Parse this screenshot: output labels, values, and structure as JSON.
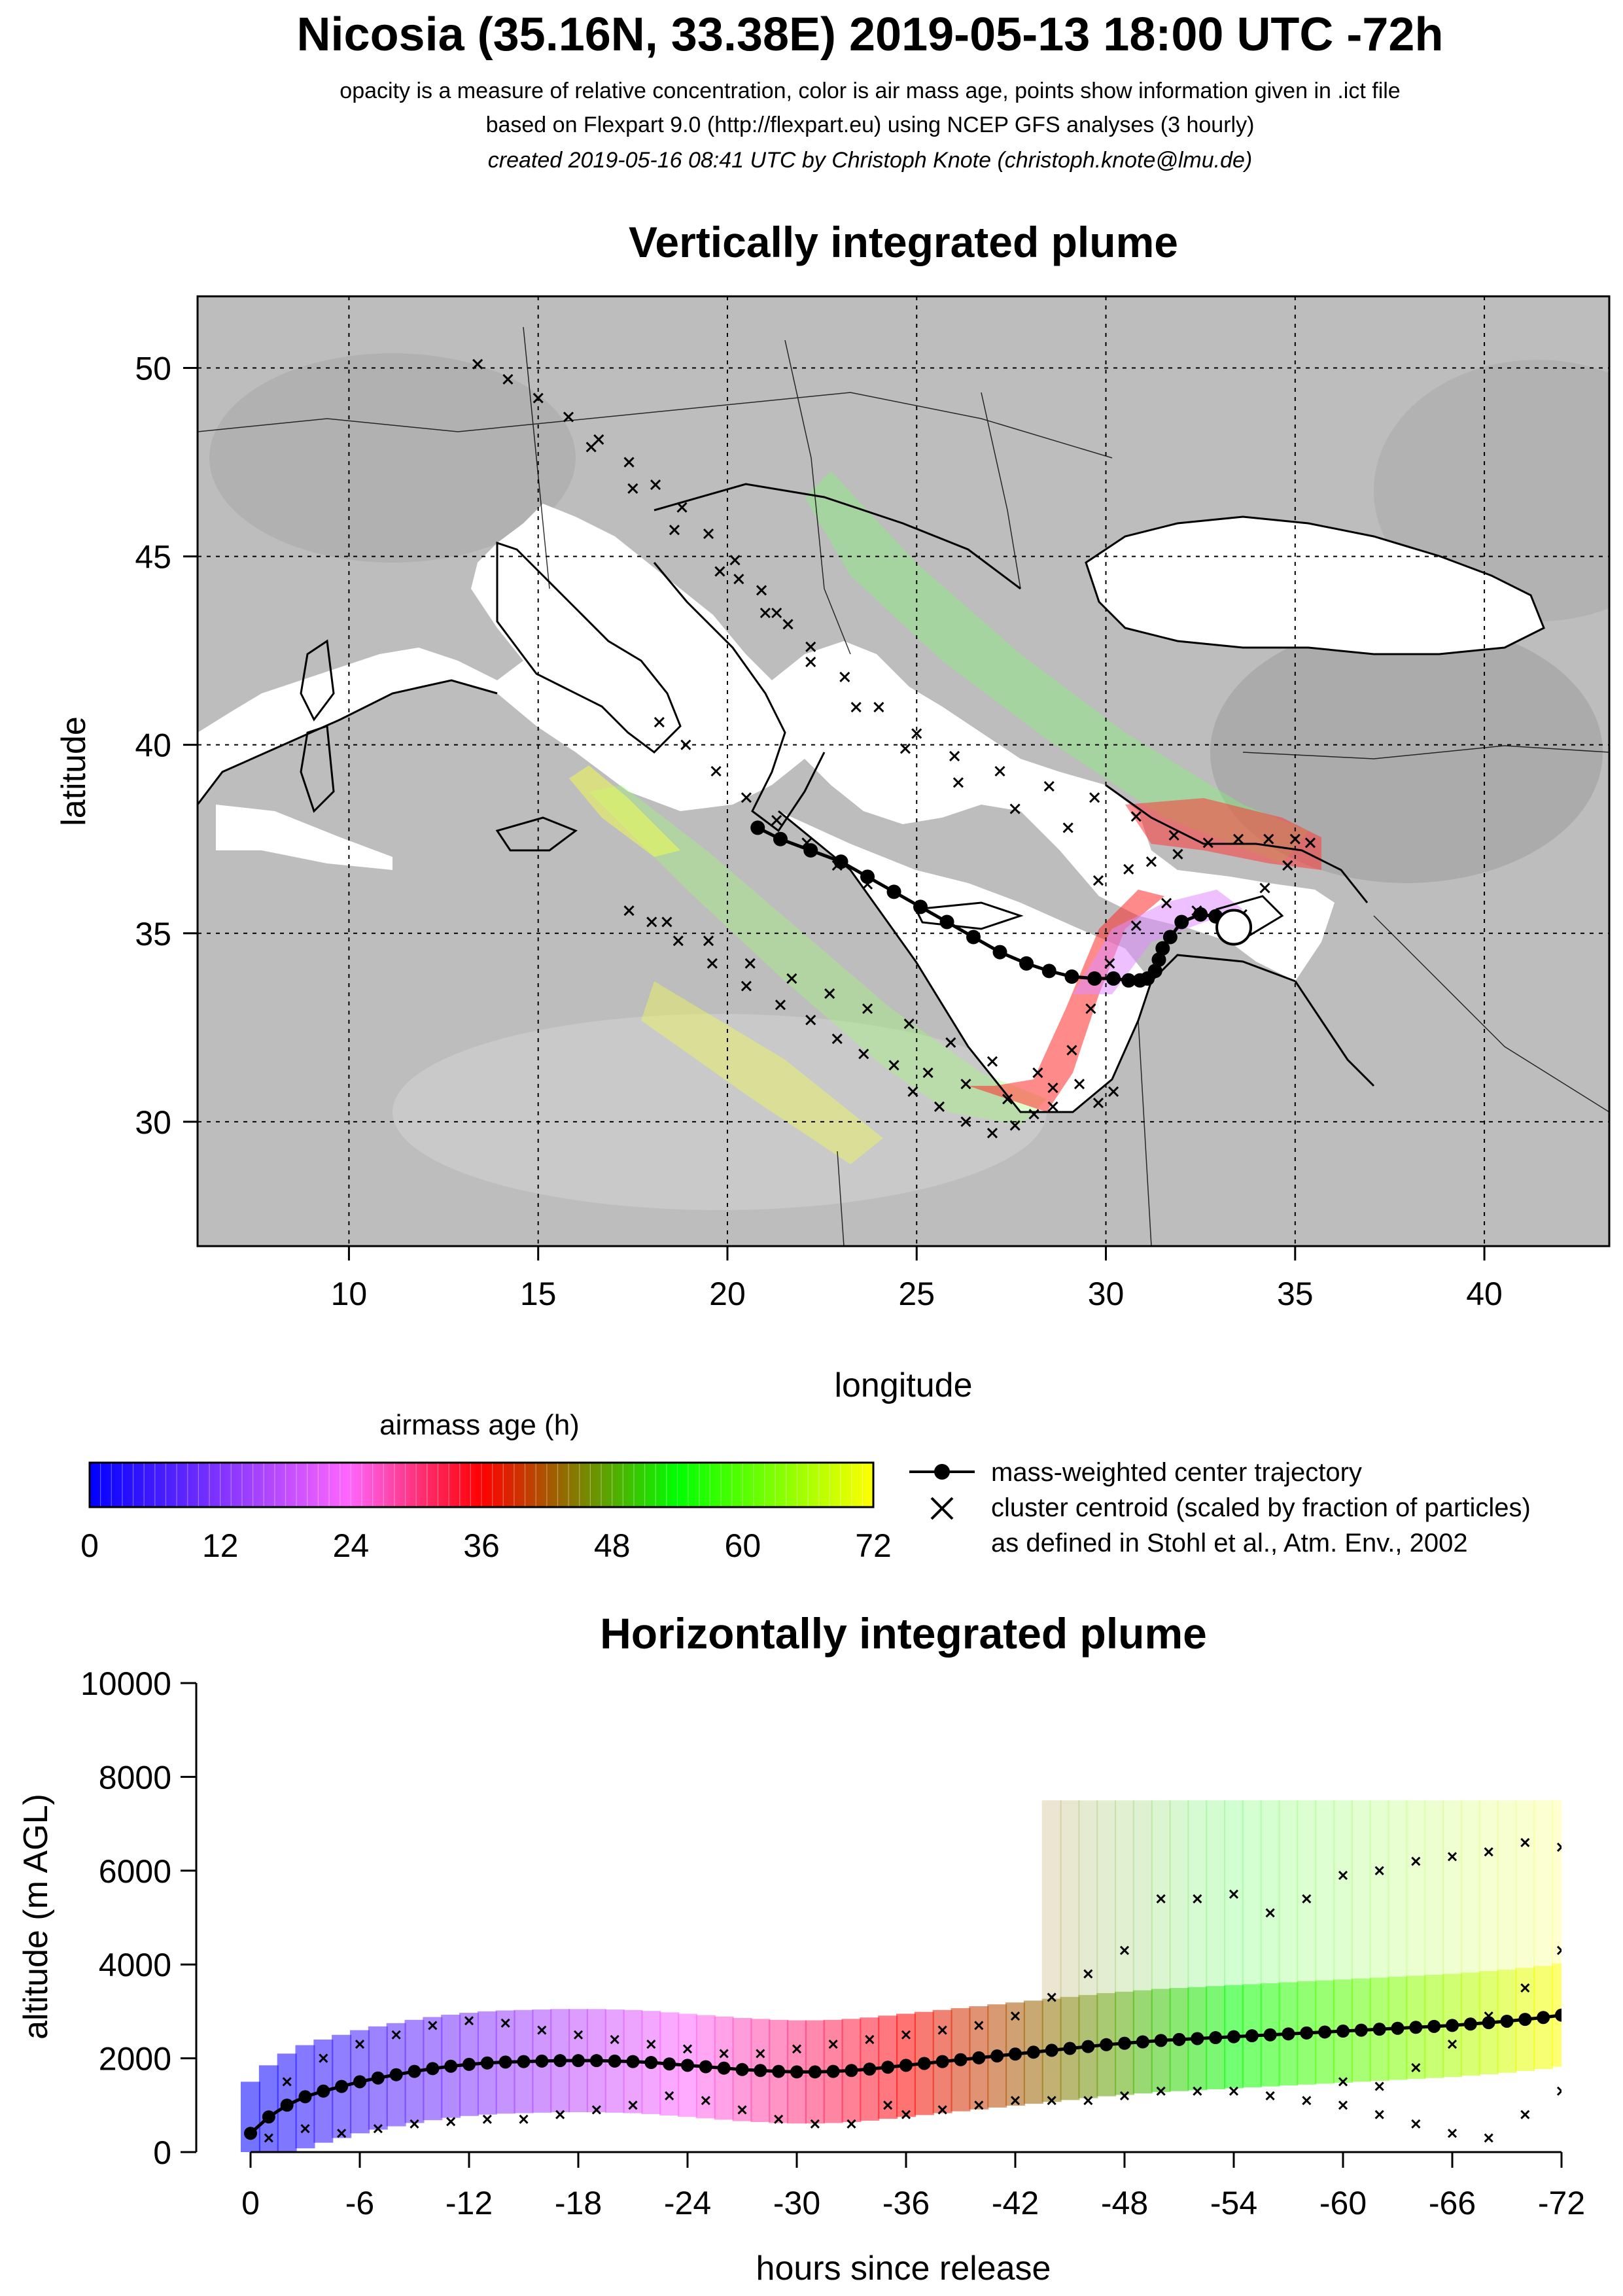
{
  "header": {
    "title": "Nicosia (35.16N, 33.38E) 2019-05-13 18:00 UTC -72h",
    "subtitle_1": "opacity is a measure of relative concentration, color is air mass age, points show information given in .ict file",
    "subtitle_2": "based on Flexpart 9.0 (http://flexpart.eu) using NCEP GFS analyses (3 hourly)",
    "subtitle_3": "created 2019-05-16 08:41 UTC by Christoph Knote (christoph.knote@lmu.de)"
  },
  "colors": {
    "age_scale": [
      "#0000ff",
      "#ff66ff",
      "#ff0000",
      "#00ff00",
      "#ffff00"
    ],
    "land": "#bdbdbd",
    "sea": "#ffffff",
    "trajectory": "#000000"
  },
  "chart_data": [
    {
      "type": "map",
      "title": "Vertically integrated plume",
      "xlabel": "longitude",
      "ylabel": "latitude",
      "xlim": [
        6.0,
        43.3
      ],
      "ylim": [
        26.7,
        51.9
      ],
      "xticks": [
        10,
        15,
        20,
        25,
        30,
        35,
        40
      ],
      "yticks": [
        30,
        35,
        40,
        45,
        50
      ],
      "grid": true,
      "release_point": {
        "lon": 33.38,
        "lat": 35.16
      },
      "center_trajectory": {
        "lon": [
          33.38,
          33.2,
          32.9,
          32.5,
          32.0,
          31.7,
          31.5,
          31.4,
          31.3,
          31.1,
          30.9,
          30.6,
          30.2,
          29.7,
          29.1,
          28.5,
          27.9,
          27.2,
          26.5,
          25.8,
          25.1,
          24.4,
          23.7,
          23.0,
          22.2,
          21.4,
          20.8
        ],
        "lat": [
          35.16,
          35.3,
          35.45,
          35.5,
          35.3,
          34.9,
          34.6,
          34.3,
          34.0,
          33.8,
          33.75,
          33.75,
          33.8,
          33.8,
          33.85,
          34.0,
          34.2,
          34.5,
          34.9,
          35.3,
          35.7,
          36.1,
          36.5,
          36.9,
          37.2,
          37.5,
          37.8
        ]
      },
      "cluster_centroids": [
        {
          "lon": [
            33.3,
            32.4,
            31.6,
            30.8,
            30.1,
            29.6,
            29.1,
            28.6,
            28.1,
            27.6,
            27.0,
            26.3,
            25.6,
            24.9
          ],
          "lat": [
            35.3,
            35.6,
            35.8,
            35.2,
            34.2,
            33.0,
            31.9,
            30.9,
            30.2,
            29.9,
            29.7,
            30.0,
            30.4,
            30.8
          ]
        },
        {
          "lon": [
            33.6,
            34.2,
            34.8,
            35.4,
            35.0,
            34.3,
            33.5,
            32.7,
            31.9,
            31.2,
            30.6,
            29.8
          ],
          "lat": [
            35.5,
            36.2,
            36.8,
            37.4,
            37.5,
            37.5,
            37.5,
            37.4,
            37.1,
            36.9,
            36.7,
            36.4
          ]
        },
        {
          "lon": [
            29.8,
            28.6,
            27.4,
            26.3,
            25.3,
            24.4,
            23.6,
            22.9,
            22.2,
            21.4,
            20.5,
            19.6,
            18.7,
            18.0
          ],
          "lat": [
            30.5,
            30.4,
            30.6,
            31.0,
            31.3,
            31.5,
            31.8,
            32.2,
            32.7,
            33.1,
            33.6,
            34.2,
            34.8,
            35.3
          ]
        },
        {
          "lon": [
            30.2,
            29.3,
            28.2,
            27.0,
            25.9,
            24.8,
            23.7,
            22.7,
            21.7,
            20.6,
            19.5,
            18.4,
            17.4
          ],
          "lat": [
            30.8,
            31.0,
            31.3,
            31.6,
            32.1,
            32.6,
            33.0,
            33.4,
            33.8,
            34.2,
            34.8,
            35.3,
            35.6
          ]
        },
        {
          "lon": [
            31.8,
            30.8,
            29.7,
            28.5,
            27.2,
            26.0,
            25.0,
            24.0,
            23.1,
            22.2,
            21.3,
            20.3
          ],
          "lat": [
            37.6,
            38.1,
            38.6,
            38.9,
            39.3,
            39.7,
            40.3,
            41.0,
            41.8,
            42.6,
            43.5,
            44.4
          ]
        },
        {
          "lon": [
            29.0,
            27.6,
            26.1,
            24.7,
            23.4,
            22.2,
            21.0,
            19.8,
            18.6,
            17.5,
            16.4
          ],
          "lat": [
            37.8,
            38.3,
            39.0,
            39.9,
            41.0,
            42.2,
            43.5,
            44.6,
            45.7,
            46.8,
            47.9
          ]
        },
        {
          "lon": [
            23.7,
            22.9,
            22.1,
            21.3,
            20.5,
            19.7,
            18.9,
            18.2
          ],
          "lat": [
            36.3,
            36.8,
            37.4,
            38.0,
            38.6,
            39.3,
            40.0,
            40.6
          ]
        },
        {
          "lon": [
            21.6,
            20.9,
            20.2,
            19.5,
            18.8,
            18.1,
            17.4,
            16.6,
            15.8,
            15.0,
            14.2,
            13.4
          ],
          "lat": [
            43.2,
            44.1,
            44.9,
            45.6,
            46.3,
            46.9,
            47.5,
            48.1,
            48.7,
            49.2,
            49.7,
            50.1
          ]
        }
      ],
      "legend": {
        "colorbar_title": "airmass age (h)",
        "colorbar_range": [
          0,
          72
        ],
        "colorbar_ticks": [
          0,
          12,
          24,
          36,
          48,
          60,
          72
        ],
        "entries": [
          "mass-weighted center trajectory",
          "cluster centroid (scaled by fraction of particles)",
          "as defined in Stohl et al., Atm. Env., 2002"
        ]
      }
    },
    {
      "type": "line",
      "title": "Horizontally integrated plume",
      "xlabel": "hours since release",
      "ylabel": "altitude (m AGL)",
      "xlim": [
        0,
        -72
      ],
      "ylim": [
        0,
        10000
      ],
      "xticks": [
        0,
        -6,
        -12,
        -18,
        -24,
        -30,
        -36,
        -42,
        -48,
        -54,
        -60,
        -66,
        -72
      ],
      "yticks": [
        0,
        2000,
        4000,
        6000,
        8000,
        10000
      ],
      "center_altitude": {
        "hours": [
          0,
          -1,
          -2,
          -3,
          -4,
          -5,
          -6,
          -7,
          -8,
          -9,
          -10,
          -11,
          -12,
          -13,
          -14,
          -15,
          -16,
          -17,
          -18,
          -19,
          -20,
          -21,
          -22,
          -23,
          -24,
          -25,
          -26,
          -27,
          -28,
          -29,
          -30,
          -31,
          -32,
          -33,
          -34,
          -35,
          -36,
          -37,
          -38,
          -39,
          -40,
          -41,
          -42,
          -43,
          -44,
          -45,
          -46,
          -47,
          -48,
          -49,
          -50,
          -51,
          -52,
          -53,
          -54,
          -55,
          -56,
          -57,
          -58,
          -59,
          -60,
          -61,
          -62,
          -63,
          -64,
          -65,
          -66,
          -67,
          -68,
          -69,
          -70,
          -71,
          -72
        ],
        "altitude": [
          400,
          750,
          1000,
          1180,
          1300,
          1400,
          1500,
          1580,
          1650,
          1720,
          1780,
          1830,
          1870,
          1900,
          1920,
          1930,
          1940,
          1950,
          1950,
          1950,
          1940,
          1930,
          1910,
          1880,
          1850,
          1820,
          1790,
          1760,
          1740,
          1720,
          1710,
          1710,
          1720,
          1740,
          1770,
          1810,
          1850,
          1890,
          1930,
          1970,
          2010,
          2050,
          2090,
          2130,
          2170,
          2210,
          2250,
          2290,
          2320,
          2350,
          2380,
          2400,
          2420,
          2440,
          2460,
          2480,
          2500,
          2520,
          2540,
          2560,
          2580,
          2600,
          2620,
          2640,
          2660,
          2680,
          2700,
          2730,
          2760,
          2790,
          2830,
          2870,
          2920
        ]
      },
      "centroid_altitudes": [
        {
          "hours": [
            -1,
            -3,
            -5,
            -7,
            -9,
            -11,
            -13,
            -15,
            -17,
            -19,
            -21,
            -23,
            -25,
            -27,
            -29,
            -31,
            -33,
            -35
          ],
          "altitude": [
            300,
            500,
            400,
            500,
            600,
            650,
            700,
            700,
            800,
            900,
            1000,
            1200,
            1100,
            900,
            700,
            600,
            600,
            1000
          ]
        },
        {
          "hours": [
            -36,
            -38,
            -40,
            -42,
            -44,
            -46,
            -48,
            -50,
            -52,
            -54,
            -56,
            -58,
            -60,
            -62,
            -64,
            -66,
            -68,
            -70,
            -72
          ],
          "altitude": [
            800,
            900,
            1000,
            1100,
            1100,
            1100,
            1200,
            1300,
            1300,
            1300,
            1200,
            1100,
            1000,
            800,
            600,
            400,
            300,
            800,
            1300
          ]
        },
        {
          "hours": [
            -2,
            -4,
            -6,
            -8,
            -10,
            -12,
            -14,
            -16,
            -18,
            -20,
            -22,
            -24,
            -26,
            -28,
            -30,
            -32,
            -34,
            -36,
            -38,
            -40
          ],
          "altitude": [
            1500,
            2000,
            2300,
            2500,
            2700,
            2800,
            2750,
            2600,
            2500,
            2400,
            2300,
            2200,
            2100,
            2100,
            2200,
            2300,
            2400,
            2500,
            2600,
            2700
          ]
        },
        {
          "hours": [
            -42,
            -44,
            -46,
            -48,
            -50,
            -52,
            -54,
            -56,
            -58,
            -60,
            -62,
            -64,
            -66,
            -68,
            -70,
            -72
          ],
          "altitude": [
            2900,
            3300,
            3800,
            4300,
            5400,
            5400,
            5500,
            5100,
            5400,
            5900,
            6000,
            6200,
            6300,
            6400,
            6600,
            6500
          ]
        },
        {
          "hours": [
            -60,
            -62,
            -64,
            -66,
            -68,
            -70,
            -72
          ],
          "altitude": [
            1500,
            1400,
            1800,
            2300,
            2900,
            3500,
            4300
          ]
        }
      ],
      "series_labels": []
    }
  ]
}
